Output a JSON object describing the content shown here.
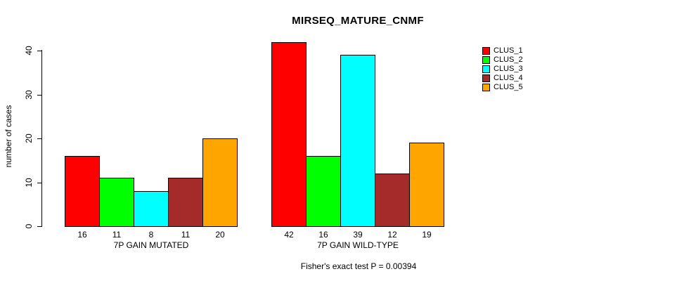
{
  "chart_data": {
    "type": "bar",
    "title": "MIRSEQ_MATURE_CNMF",
    "ylabel": "number of cases",
    "ylim": [
      0,
      40
    ],
    "yticks": [
      0,
      10,
      20,
      30,
      40
    ],
    "grid": false,
    "legend_position": "right",
    "bar_value_labels_shown": true,
    "annotation": "Fisher's exact test P = 0.00394",
    "categories": [
      "7P GAIN MUTATED",
      "7P GAIN WILD-TYPE"
    ],
    "series": [
      {
        "name": "CLUS_1",
        "color": "#FF0000",
        "values": [
          16,
          42
        ]
      },
      {
        "name": "CLUS_2",
        "color": "#00FF00",
        "values": [
          11,
          16
        ]
      },
      {
        "name": "CLUS_3",
        "color": "#00FFFF",
        "values": [
          8,
          39
        ]
      },
      {
        "name": "CLUS_4",
        "color": "#A52A2A",
        "values": [
          11,
          12
        ]
      },
      {
        "name": "CLUS_5",
        "color": "#FFA500",
        "values": [
          20,
          19
        ]
      }
    ]
  }
}
